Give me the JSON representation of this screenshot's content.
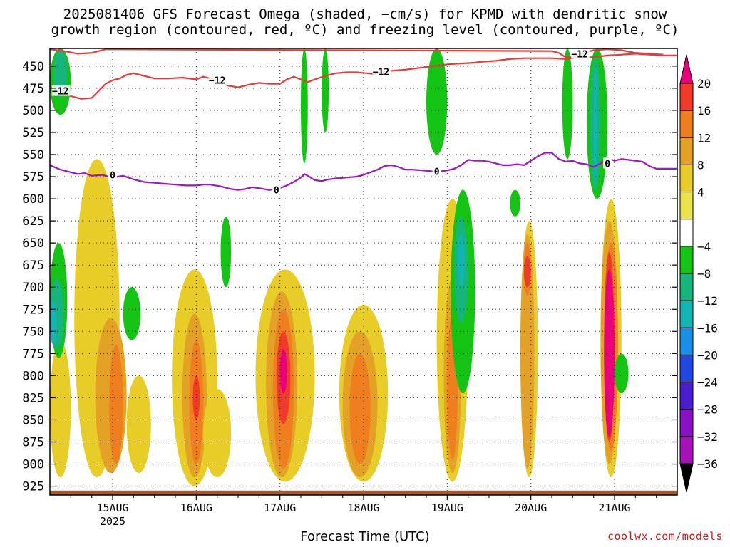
{
  "chart_data": {
    "type": "heatmap",
    "title_line1": "2025081406 GFS Forecast Omega (shaded, −cm/s) for KPMD with dendritic snow",
    "title_line2": "growth region (contoured, red, ºC) and freezing level (contoured, purple, ºC)",
    "xlabel": "Forecast Time (UTC)",
    "credit": "coolwx.com/models",
    "x_ticks": [
      {
        "label": "15AUG",
        "sub": "2025",
        "t": 24
      },
      {
        "label": "16AUG",
        "sub": "",
        "t": 48
      },
      {
        "label": "17AUG",
        "sub": "",
        "t": 72
      },
      {
        "label": "18AUG",
        "sub": "",
        "t": 96
      },
      {
        "label": "19AUG",
        "sub": "",
        "t": 120
      },
      {
        "label": "20AUG",
        "sub": "",
        "t": 144
      },
      {
        "label": "21AUG",
        "sub": "",
        "t": 168
      }
    ],
    "x_range_hours": [
      6,
      186
    ],
    "y_ticks": [
      450,
      475,
      500,
      525,
      550,
      575,
      600,
      625,
      650,
      675,
      700,
      725,
      750,
      775,
      800,
      825,
      850,
      875,
      900,
      925
    ],
    "y_range_hpa": [
      430,
      935
    ],
    "colorbar": {
      "labels": [
        "20",
        "16",
        "12",
        "8",
        "4",
        "−4",
        "−8",
        "−12",
        "−16",
        "−20",
        "−24",
        "−28",
        "−32",
        "−36"
      ],
      "colors": [
        "#e8007c",
        "#f03a2a",
        "#ef7f1e",
        "#e3a126",
        "#e8cd29",
        "#e9e34e",
        "#ffffff",
        "#14c314",
        "#15b57c",
        "#13b4b4",
        "#1a8fea",
        "#2048e0",
        "#4a1ed0",
        "#8a10c8",
        "#a612b8",
        "#a8a8a8",
        "#000000"
      ]
    },
    "dgz_contour": {
      "label": "−12",
      "color": "#e83a3a",
      "lower": [
        [
          6,
          472
        ],
        [
          9,
          478
        ],
        [
          12,
          484
        ],
        [
          15,
          487
        ],
        [
          18,
          486
        ],
        [
          20,
          478
        ],
        [
          22,
          470
        ],
        [
          24,
          466
        ],
        [
          26,
          464
        ],
        [
          28,
          460
        ],
        [
          30,
          458
        ],
        [
          33,
          461
        ],
        [
          36,
          464
        ],
        [
          40,
          464
        ],
        [
          44,
          463
        ],
        [
          48,
          465
        ],
        [
          50,
          462
        ],
        [
          54,
          466
        ],
        [
          57,
          472
        ],
        [
          60,
          474
        ],
        [
          63,
          471
        ],
        [
          66,
          469
        ],
        [
          69,
          470
        ],
        [
          72,
          470
        ],
        [
          74,
          465
        ],
        [
          76,
          462
        ],
        [
          78,
          465
        ],
        [
          80,
          468
        ],
        [
          82,
          465
        ],
        [
          85,
          461
        ],
        [
          88,
          458
        ],
        [
          91,
          457
        ],
        [
          94,
          457
        ],
        [
          97,
          458
        ],
        [
          99,
          459
        ],
        [
          102,
          456
        ],
        [
          105,
          455
        ],
        [
          108,
          454
        ],
        [
          112,
          452
        ],
        [
          116,
          450
        ],
        [
          120,
          448
        ],
        [
          124,
          447
        ],
        [
          128,
          446
        ],
        [
          130,
          445
        ],
        [
          134,
          444
        ],
        [
          138,
          442
        ],
        [
          142,
          441
        ],
        [
          146,
          441
        ],
        [
          150,
          441
        ],
        [
          154,
          442
        ],
        [
          158,
          440
        ],
        [
          162,
          440
        ],
        [
          166,
          438
        ],
        [
          170,
          437
        ],
        [
          174,
          436
        ],
        [
          178,
          437
        ],
        [
          182,
          438
        ],
        [
          186,
          438
        ]
      ],
      "upper": [
        [
          6,
          431
        ],
        [
          10,
          433
        ],
        [
          14,
          436
        ],
        [
          18,
          435
        ],
        [
          22,
          431
        ],
        [
          150,
          433
        ],
        [
          152,
          435
        ],
        [
          154,
          440
        ],
        [
          156,
          440
        ],
        [
          158,
          437
        ],
        [
          160,
          434
        ],
        [
          162,
          432
        ],
        [
          166,
          431
        ],
        [
          170,
          432
        ],
        [
          174,
          435
        ],
        [
          178,
          436
        ],
        [
          182,
          437
        ]
      ],
      "labels": [
        {
          "t": 9,
          "p": 478
        },
        {
          "t": 54,
          "p": 466
        },
        {
          "t": 101,
          "p": 456
        },
        {
          "t": 158,
          "p": 436
        }
      ]
    },
    "freezing_contour": {
      "label": "0",
      "color": "#9b18c0",
      "points": [
        [
          6,
          562
        ],
        [
          9,
          567
        ],
        [
          12,
          570
        ],
        [
          14,
          572
        ],
        [
          16,
          571
        ],
        [
          18,
          574
        ],
        [
          21,
          573
        ],
        [
          24,
          576
        ],
        [
          27,
          574
        ],
        [
          30,
          578
        ],
        [
          33,
          581
        ],
        [
          36,
          582
        ],
        [
          39,
          583
        ],
        [
          42,
          584
        ],
        [
          45,
          585
        ],
        [
          48,
          585
        ],
        [
          50,
          584
        ],
        [
          52,
          584
        ],
        [
          55,
          586
        ],
        [
          58,
          589
        ],
        [
          60,
          590
        ],
        [
          62,
          589
        ],
        [
          64,
          587
        ],
        [
          66,
          588
        ],
        [
          69,
          590
        ],
        [
          72,
          588
        ],
        [
          74,
          585
        ],
        [
          76,
          581
        ],
        [
          78,
          576
        ],
        [
          79,
          572
        ],
        [
          80,
          574
        ],
        [
          82,
          579
        ],
        [
          84,
          580
        ],
        [
          86,
          578
        ],
        [
          88,
          577
        ],
        [
          91,
          576
        ],
        [
          94,
          575
        ],
        [
          96,
          573
        ],
        [
          98,
          570
        ],
        [
          100,
          567
        ],
        [
          102,
          563
        ],
        [
          104,
          562
        ],
        [
          106,
          564
        ],
        [
          108,
          567
        ],
        [
          110,
          567
        ],
        [
          113,
          568
        ],
        [
          116,
          569
        ],
        [
          118,
          569
        ],
        [
          120,
          568
        ],
        [
          122,
          566
        ],
        [
          124,
          562
        ],
        [
          126,
          556
        ],
        [
          128,
          557
        ],
        [
          130,
          557
        ],
        [
          132,
          558
        ],
        [
          134,
          560
        ],
        [
          136,
          562
        ],
        [
          138,
          562
        ],
        [
          140,
          561
        ],
        [
          142,
          562
        ],
        [
          144,
          557
        ],
        [
          146,
          552
        ],
        [
          148,
          548
        ],
        [
          150,
          548
        ],
        [
          152,
          555
        ],
        [
          154,
          558
        ],
        [
          156,
          557
        ],
        [
          158,
          560
        ],
        [
          160,
          561
        ],
        [
          162,
          564
        ],
        [
          164,
          560
        ],
        [
          166,
          554
        ],
        [
          168,
          557
        ],
        [
          170,
          555
        ],
        [
          172,
          556
        ],
        [
          174,
          557
        ],
        [
          176,
          558
        ],
        [
          178,
          563
        ],
        [
          180,
          566
        ],
        [
          182,
          566
        ],
        [
          184,
          566
        ],
        [
          186,
          566
        ]
      ],
      "labels": [
        {
          "t": 24,
          "p": 573
        },
        {
          "t": 71,
          "p": 590
        },
        {
          "t": 117,
          "p": 569
        },
        {
          "t": 166,
          "p": 560
        }
      ]
    },
    "surface_pressure": 930,
    "omega_shaded_regions": [
      {
        "t": [
          6,
          12
        ],
        "p": [
          760,
          915
        ],
        "v": 4
      },
      {
        "t": [
          13,
          26
        ],
        "p": [
          555,
          915
        ],
        "v": 4
      },
      {
        "t": [
          19,
          28
        ],
        "p": [
          735,
          910
        ],
        "v": 8
      },
      {
        "t": [
          23,
          27
        ],
        "p": [
          765,
          900
        ],
        "v": 12
      },
      {
        "t": [
          28,
          35
        ],
        "p": [
          800,
          910
        ],
        "v": 4
      },
      {
        "t": [
          41,
          54
        ],
        "p": [
          680,
          925
        ],
        "v": 4
      },
      {
        "t": [
          44,
          51
        ],
        "p": [
          730,
          915
        ],
        "v": 8
      },
      {
        "t": [
          46,
          50
        ],
        "p": [
          760,
          900
        ],
        "v": 12
      },
      {
        "t": [
          47,
          49
        ],
        "p": [
          800,
          850
        ],
        "v": 16
      },
      {
        "t": [
          50,
          58
        ],
        "p": [
          815,
          915
        ],
        "v": 4
      },
      {
        "t": [
          65,
          82
        ],
        "p": [
          680,
          920
        ],
        "v": 4
      },
      {
        "t": [
          68,
          77
        ],
        "p": [
          705,
          915
        ],
        "v": 8
      },
      {
        "t": [
          70,
          76
        ],
        "p": [
          725,
          905
        ],
        "v": 12
      },
      {
        "t": [
          71,
          75
        ],
        "p": [
          750,
          855
        ],
        "v": 16
      },
      {
        "t": [
          72,
          74
        ],
        "p": [
          770,
          820
        ],
        "v": 20
      },
      {
        "t": [
          89,
          103
        ],
        "p": [
          720,
          920
        ],
        "v": 4
      },
      {
        "t": [
          90,
          100
        ],
        "p": [
          750,
          915
        ],
        "v": 8
      },
      {
        "t": [
          92,
          98
        ],
        "p": [
          775,
          900
        ],
        "v": 12
      },
      {
        "t": [
          117,
          126
        ],
        "p": [
          600,
          920
        ],
        "v": 4
      },
      {
        "t": [
          119,
          124
        ],
        "p": [
          690,
          910
        ],
        "v": 8
      },
      {
        "t": [
          120,
          123
        ],
        "p": [
          730,
          895
        ],
        "v": 12
      },
      {
        "t": [
          141,
          146
        ],
        "p": [
          625,
          915
        ],
        "v": 4
      },
      {
        "t": [
          141,
          145
        ],
        "p": [
          640,
          905
        ],
        "v": 8
      },
      {
        "t": [
          142,
          144
        ],
        "p": [
          650,
          710
        ],
        "v": 12
      },
      {
        "t": [
          142,
          144
        ],
        "p": [
          665,
          700
        ],
        "v": 16
      },
      {
        "t": [
          164,
          170
        ],
        "p": [
          600,
          915
        ],
        "v": 4
      },
      {
        "t": [
          164,
          169
        ],
        "p": [
          625,
          900
        ],
        "v": 8
      },
      {
        "t": [
          165,
          169
        ],
        "p": [
          650,
          885
        ],
        "v": 12
      },
      {
        "t": [
          165,
          168
        ],
        "p": [
          660,
          875
        ],
        "v": 16
      },
      {
        "t": [
          165,
          168
        ],
        "p": [
          680,
          870
        ],
        "v": 20
      },
      {
        "t": [
          6,
          11
        ],
        "p": [
          650,
          780
        ],
        "v": -4
      },
      {
        "t": [
          6,
          10
        ],
        "p": [
          690,
          770
        ],
        "v": -8
      },
      {
        "t": [
          6,
          8
        ],
        "p": [
          715,
          765
        ],
        "v": -12
      },
      {
        "t": [
          6,
          12
        ],
        "p": [
          430,
          505
        ],
        "v": -4
      },
      {
        "t": [
          7,
          11
        ],
        "p": [
          432,
          485
        ],
        "v": -8
      },
      {
        "t": [
          27,
          32
        ],
        "p": [
          700,
          760
        ],
        "v": -4
      },
      {
        "t": [
          55,
          58
        ],
        "p": [
          620,
          700
        ],
        "v": -4
      },
      {
        "t": [
          78,
          80
        ],
        "p": [
          430,
          560
        ],
        "v": -4
      },
      {
        "t": [
          84,
          86
        ],
        "p": [
          430,
          525
        ],
        "v": -4
      },
      {
        "t": [
          114,
          120
        ],
        "p": [
          430,
          550
        ],
        "v": -4
      },
      {
        "t": [
          121,
          128
        ],
        "p": [
          590,
          820
        ],
        "v": -4
      },
      {
        "t": [
          122,
          126
        ],
        "p": [
          620,
          740
        ],
        "v": -8
      },
      {
        "t": [
          123,
          125
        ],
        "p": [
          640,
          700
        ],
        "v": -12
      },
      {
        "t": [
          138,
          141
        ],
        "p": [
          590,
          620
        ],
        "v": -4
      },
      {
        "t": [
          153,
          156
        ],
        "p": [
          430,
          555
        ],
        "v": -4
      },
      {
        "t": [
          160,
          166
        ],
        "p": [
          430,
          600
        ],
        "v": -4
      },
      {
        "t": [
          161,
          164
        ],
        "p": [
          440,
          590
        ],
        "v": -8
      },
      {
        "t": [
          162,
          163
        ],
        "p": [
          450,
          585
        ],
        "v": -12
      },
      {
        "t": [
          168,
          172
        ],
        "p": [
          775,
          820
        ],
        "v": -4
      }
    ]
  }
}
